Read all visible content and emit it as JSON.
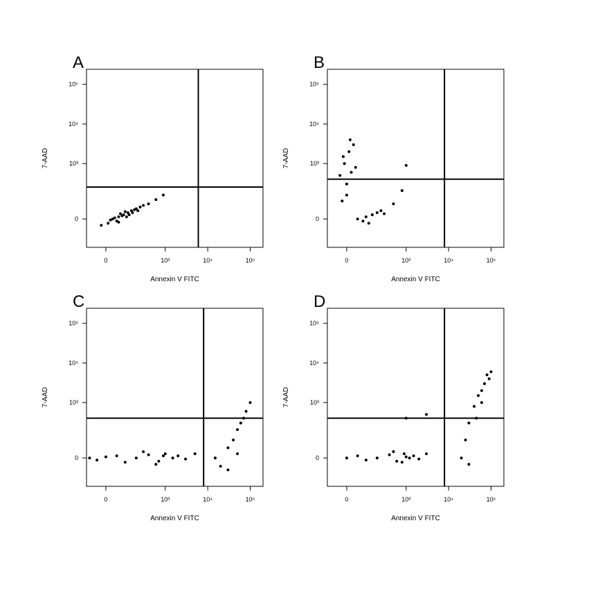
{
  "chart_data": [
    {
      "type": "scatter",
      "label": "A",
      "x_label": "Annexin V FITC",
      "y_label": "7-AAD",
      "color": "#000000",
      "xlim": [
        -100,
        200000
      ],
      "ylim": [
        -200,
        240000
      ],
      "xticks": [
        0,
        {
          "value": 1000,
          "label": "10³"
        },
        {
          "value": 10000,
          "label": "10⁴"
        },
        {
          "value": 100000,
          "label": "10⁵"
        }
      ],
      "yticks": [
        0,
        {
          "value": 1000,
          "label": "10³"
        },
        {
          "value": 10000,
          "label": "10⁴"
        },
        {
          "value": 100000,
          "label": "10⁵"
        }
      ],
      "quadrant": {
        "x": 6000,
        "y": 250
      },
      "x": [
        30,
        60,
        90,
        120,
        50,
        80,
        150,
        200,
        10,
        -20,
        40,
        70,
        100,
        130,
        180,
        250,
        400,
        600,
        900,
        20,
        60,
        110,
        160,
        220,
        300
      ],
      "y": [
        0,
        10,
        20,
        30,
        -10,
        15,
        40,
        50,
        -20,
        -30,
        5,
        25,
        35,
        20,
        45,
        60,
        80,
        110,
        150,
        -5,
        -15,
        10,
        30,
        40,
        70
      ]
    },
    {
      "type": "scatter",
      "label": "B",
      "x_label": "Annexin V FITC",
      "y_label": "7-AAD",
      "color": "#000000",
      "xlim": [
        -100,
        200000
      ],
      "ylim": [
        -200,
        240000
      ],
      "xticks": [
        0,
        {
          "value": 1000,
          "label": "10³"
        },
        {
          "value": 10000,
          "label": "10⁴"
        },
        {
          "value": 100000,
          "label": "10⁵"
        }
      ],
      "yticks": [
        0,
        {
          "value": 1000,
          "label": "10³"
        },
        {
          "value": 10000,
          "label": "10⁴"
        },
        {
          "value": 100000,
          "label": "10⁵"
        }
      ],
      "quadrant": {
        "x": 8000,
        "y": 400
      },
      "x": [
        50,
        100,
        150,
        200,
        80,
        120,
        250,
        300,
        -20,
        0,
        20,
        -10,
        10,
        30,
        -30,
        40,
        0,
        15,
        -15,
        500,
        800,
        1000
      ],
      "y": [
        0,
        10,
        20,
        30,
        -10,
        -20,
        40,
        25,
        100,
        300,
        600,
        1000,
        2000,
        3000,
        500,
        800,
        150,
        4000,
        1500,
        80,
        200,
        900
      ]
    },
    {
      "type": "scatter",
      "label": "C",
      "x_label": "Annexin V FITC",
      "y_label": "7-AAD",
      "color": "#000000",
      "xlim": [
        -100,
        200000
      ],
      "ylim": [
        -200,
        240000
      ],
      "xticks": [
        0,
        {
          "value": 1000,
          "label": "10³"
        },
        {
          "value": 10000,
          "label": "10⁴"
        },
        {
          "value": 100000,
          "label": "10⁵"
        }
      ],
      "yticks": [
        0,
        {
          "value": 1000,
          "label": "10³"
        },
        {
          "value": 10000,
          "label": "10⁴"
        },
        {
          "value": 100000,
          "label": "10⁵"
        }
      ],
      "quadrant": {
        "x": 8000,
        "y": 400
      },
      "x": [
        -80,
        -40,
        0,
        50,
        100,
        200,
        400,
        700,
        1000,
        1500,
        2000,
        3000,
        5000,
        300,
        600,
        900,
        15000,
        20000,
        30000,
        40000,
        50000,
        60000,
        80000,
        30000,
        50000,
        70000,
        100000
      ],
      "y": [
        0,
        -10,
        5,
        10,
        -20,
        0,
        15,
        -15,
        20,
        0,
        10,
        -5,
        20,
        30,
        -30,
        10,
        0,
        -40,
        50,
        100,
        200,
        300,
        600,
        -60,
        20,
        400,
        1000
      ]
    },
    {
      "type": "scatter",
      "label": "D",
      "x_label": "Annexin V FITC",
      "y_label": "7-AAD",
      "color": "#000000",
      "xlim": [
        -100,
        200000
      ],
      "ylim": [
        -200,
        240000
      ],
      "xticks": [
        0,
        {
          "value": 1000,
          "label": "10³"
        },
        {
          "value": 10000,
          "label": "10⁴"
        },
        {
          "value": 100000,
          "label": "10⁵"
        }
      ],
      "yticks": [
        0,
        {
          "value": 1000,
          "label": "10³"
        },
        {
          "value": 10000,
          "label": "10⁴"
        },
        {
          "value": 100000,
          "label": "10⁵"
        }
      ],
      "quadrant": {
        "x": 8000,
        "y": 400
      },
      "x": [
        0,
        50,
        100,
        200,
        400,
        600,
        900,
        1200,
        1500,
        2000,
        3000,
        500,
        800,
        1000,
        20000,
        25000,
        30000,
        40000,
        50000,
        60000,
        70000,
        80000,
        100000,
        30000,
        45000,
        60000,
        90000,
        1000,
        3000
      ],
      "y": [
        0,
        10,
        -10,
        0,
        15,
        -15,
        20,
        0,
        10,
        -5,
        20,
        30,
        -20,
        5,
        0,
        100,
        300,
        800,
        1500,
        2000,
        3000,
        5000,
        6000,
        -30,
        400,
        1000,
        4000,
        400,
        500
      ]
    }
  ]
}
